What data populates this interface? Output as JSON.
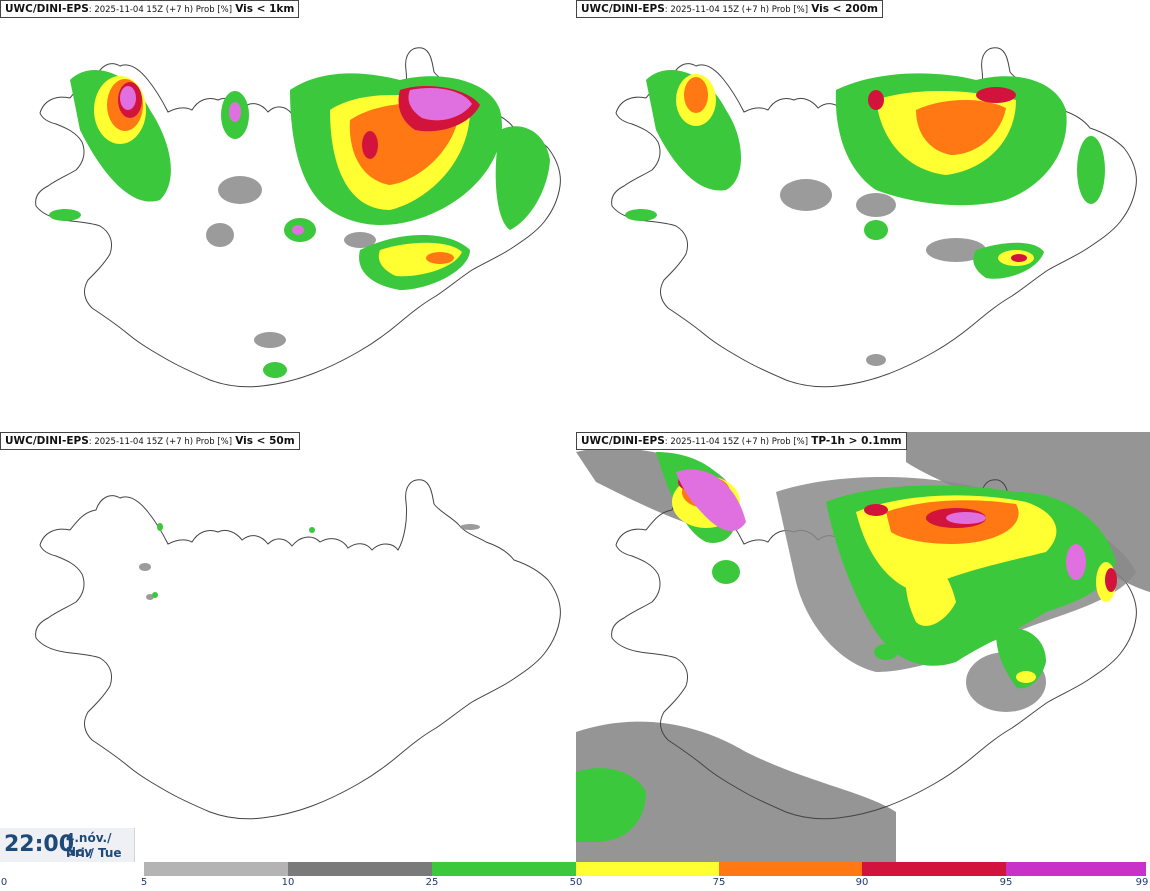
{
  "panels": [
    {
      "model": "UWC/DINI-EPS",
      "meta": ": 2025-11-04 15Z (+7 h) Prob [%]",
      "variable": "Vis < 1km"
    },
    {
      "model": "UWC/DINI-EPS",
      "meta": ": 2025-11-04 15Z (+7 h) Prob [%]",
      "variable": "Vis < 200m"
    },
    {
      "model": "UWC/DINI-EPS",
      "meta": ": 2025-11-04 15Z (+7 h) Prob [%]",
      "variable": "Vis < 50m"
    },
    {
      "model": "UWC/DINI-EPS",
      "meta": ": 2025-11-04 15Z (+7 h) Prob [%]",
      "variable": "TP-1h > 0.1mm"
    }
  ],
  "time": {
    "clock": "22:00",
    "date_line1": "4.nóv./ Nov",
    "date_line2": "Þri./ Tue"
  },
  "colorbar": {
    "ticks": [
      "0",
      "5",
      "10",
      "25",
      "50",
      "75",
      "90",
      "95",
      "99"
    ],
    "colors": [
      "#ffffff",
      "#b4b4b4",
      "#7a7a7a",
      "#3cc83c",
      "#ffff32",
      "#ff7814",
      "#d2143c",
      "#c832c8",
      "#ffa0ff"
    ]
  }
}
